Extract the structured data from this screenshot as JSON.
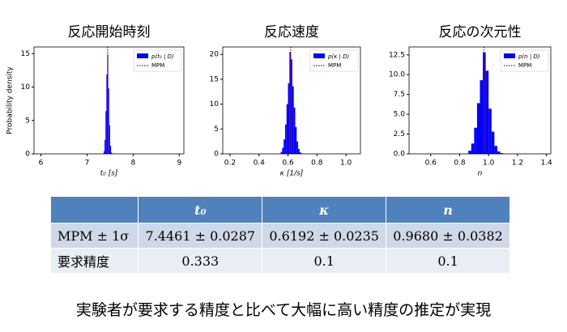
{
  "chart_data": [
    {
      "type": "histogram",
      "title": "反応開始時刻",
      "ylabel": "Probability density",
      "xlabel": "t₀ [s]",
      "bins": [
        7.36,
        7.38,
        7.4,
        7.42,
        7.44,
        7.46,
        7.48,
        7.5,
        7.52,
        7.54
      ],
      "series": [
        {
          "name": "p(t₀ | D)",
          "color": "#0000ff",
          "values": [
            0.4,
            2.1,
            6.4,
            11.9,
            14.8,
            9.8,
            4.3,
            1.2,
            0.2
          ]
        }
      ],
      "mpm": {
        "name": "MPM",
        "color": "#a00000",
        "value": 7.4461
      },
      "xlim": [
        5.85,
        9.1
      ],
      "xticks": [
        6,
        7,
        8,
        9
      ],
      "ylim": [
        0,
        16
      ],
      "yticks": [
        0,
        5,
        10,
        15
      ],
      "legend": "upper right"
    },
    {
      "type": "histogram",
      "title": "反応速度",
      "xlabel": "κ [1/s]",
      "bins": [
        0.55,
        0.56,
        0.57,
        0.58,
        0.59,
        0.6,
        0.61,
        0.62,
        0.63,
        0.64,
        0.65,
        0.66,
        0.67,
        0.68,
        0.69,
        0.7
      ],
      "series": [
        {
          "name": "p(κ | D)",
          "color": "#0000ff",
          "values": [
            0.4,
            1.2,
            2.9,
            5.9,
            10.0,
            14.2,
            20.5,
            19.0,
            13.6,
            9.3,
            5.4,
            2.5,
            1.0,
            0.3,
            0.1
          ]
        }
      ],
      "mpm": {
        "name": "MPM",
        "color": "#a00000",
        "value": 0.6192
      },
      "xlim": [
        0.15,
        1.1
      ],
      "xticks": [
        0.2,
        0.4,
        0.6,
        0.8,
        {
          "value": 1,
          "label": "1.0"
        }
      ],
      "ylim": [
        0,
        21.5
      ],
      "yticks": [
        0,
        5,
        10,
        15,
        20
      ],
      "legend": "upper right"
    },
    {
      "type": "histogram",
      "title": "反応の次元性",
      "xlabel": "n",
      "bins": [
        0.86,
        0.88,
        0.9,
        0.92,
        0.94,
        0.96,
        0.98,
        1.0,
        1.02,
        1.04,
        1.06,
        1.08,
        1.1
      ],
      "series": [
        {
          "name": "p(n | D)",
          "color": "#0000ff",
          "values": [
            0.4,
            1.3,
            3.3,
            6.4,
            9.3,
            12.8,
            10.5,
            5.7,
            2.8,
            1.0,
            0.3,
            0.1
          ]
        }
      ],
      "mpm": {
        "name": "MPM",
        "color": "#a00000",
        "value": 0.968
      },
      "xlim": [
        0.45,
        1.43
      ],
      "xticks": [
        0.6,
        0.8,
        {
          "value": 1,
          "label": "1.0"
        },
        1.2,
        1.4
      ],
      "ylim": [
        0,
        13.5
      ],
      "yticks": [
        {
          "value": 0,
          "label": "0.0"
        },
        2.5,
        {
          "value": 5,
          "label": "5.0"
        },
        7.5,
        {
          "value": 10,
          "label": "10.0"
        },
        12.5
      ],
      "legend": "upper right"
    }
  ],
  "table": {
    "columns": [
      "t₀",
      "κ",
      "n"
    ],
    "rows": [
      [
        "MPM ± 1σ",
        "7.4461 ± 0.0287",
        "0.6192 ± 0.0235",
        "0.9680 ± 0.0382"
      ],
      [
        "要求精度",
        "0.333",
        "0.1",
        "0.1"
      ]
    ]
  },
  "caption": "実験者が要求する精度と比べて大幅に高い精度の推定が実現"
}
